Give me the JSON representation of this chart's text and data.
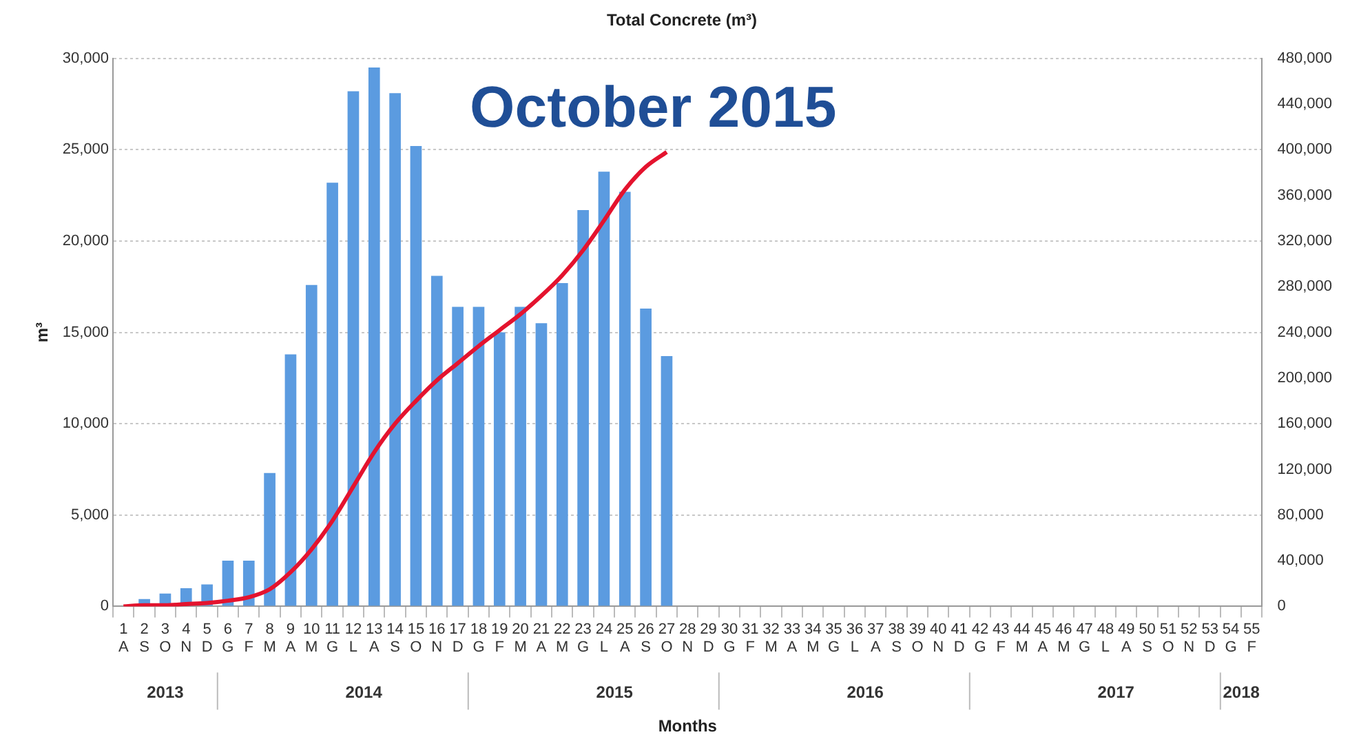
{
  "chart_data": {
    "type": "bar",
    "title": "Total Concrete (m³)",
    "xlabel": "Months",
    "ylabel": "m³",
    "categories": [
      "1\nA",
      "2\nS",
      "3\nO",
      "4\nN",
      "5\nD",
      "6\nG",
      "7\nF",
      "8\nM",
      "9\nA",
      "10\nM",
      "11\nG",
      "12\nL",
      "13\nA",
      "14\nS",
      "15\nO",
      "16\nN",
      "17\nD",
      "18\nG",
      "19\nF",
      "20\nM",
      "21\nA",
      "22\nM",
      "23\nG",
      "24\nL",
      "25\nA",
      "26\nS",
      "27\nO",
      "28\nN",
      "29\nD",
      "30\nG",
      "31\nF",
      "32\nM",
      "33\nA",
      "34\nM",
      "35\nG",
      "36\nL",
      "37\nA",
      "38\nS",
      "39\nO",
      "40\nN",
      "41\nD",
      "42\nG",
      "43\nF",
      "44\nM",
      "45\nA",
      "46\nM",
      "47\nG",
      "48\nL",
      "49\nA",
      "50\nS",
      "51\nO",
      "52\nN",
      "53\nD",
      "54\nG",
      "55\nF"
    ],
    "series": [
      {
        "color": "#5b9be0",
        "values": [
          null,
          400,
          700,
          1000,
          1200,
          2500,
          2500,
          7300,
          13800,
          17600,
          23200,
          28200,
          29500,
          28100,
          25200,
          18100,
          16400,
          16400,
          15000,
          16400,
          15500,
          17700,
          21700,
          23800,
          22700,
          16300,
          13700,
          null,
          null,
          null,
          null,
          null,
          null,
          null,
          null,
          null,
          null,
          null,
          null,
          null,
          null,
          null,
          null,
          null,
          null,
          null,
          null,
          null,
          null,
          null,
          null,
          null,
          null,
          null,
          null
        ]
      },
      {
        "type": "line",
        "axis": "y2",
        "color": "#e4132e",
        "values": [
          0,
          1000,
          1000,
          2000,
          3000,
          5000,
          8000,
          15000,
          30000,
          50000,
          75000,
          105000,
          135000,
          160000,
          180000,
          198000,
          213000,
          228000,
          242000,
          256000,
          272000,
          290000,
          312000,
          338000,
          365000,
          385000,
          398000,
          null,
          null,
          null,
          null,
          null,
          null,
          null,
          null,
          null,
          null,
          null,
          null,
          null,
          null,
          null,
          null,
          null,
          null,
          null,
          null,
          null,
          null,
          null,
          null,
          null,
          null,
          null,
          null
        ]
      }
    ],
    "ylim": [
      0,
      30000
    ],
    "yticks": [
      0,
      {
        "value": 5000,
        "label": "5,000"
      },
      {
        "value": 10000,
        "label": "10,000"
      },
      {
        "value": 15000,
        "label": "15,000"
      },
      {
        "value": 20000,
        "label": "20,000"
      },
      {
        "value": 25000,
        "label": "25,000"
      },
      {
        "value": 30000,
        "label": "30,000"
      }
    ],
    "y2lim": [
      0,
      480000
    ],
    "y2ticks": [
      0,
      {
        "value": 40000,
        "label": "40,000"
      },
      {
        "value": 80000,
        "label": "80,000"
      },
      {
        "value": 120000,
        "label": "120,000"
      },
      {
        "value": 160000,
        "label": "160,000"
      },
      {
        "value": 200000,
        "label": "200,000"
      },
      {
        "value": 240000,
        "label": "240,000"
      },
      {
        "value": 280000,
        "label": "280,000"
      },
      {
        "value": 320000,
        "label": "320,000"
      },
      {
        "value": 360000,
        "label": "360,000"
      },
      {
        "value": 400000,
        "label": "400,000"
      },
      {
        "value": 440000,
        "label": "440,000"
      },
      {
        "value": 480000,
        "label": "480,000"
      }
    ],
    "annotations": [
      "October 2015",
      "2013",
      "2014",
      "2015",
      "2016",
      "2017",
      "2018"
    ],
    "grid": "y",
    "legend": false,
    "marker": "none",
    "line_style": "solid"
  }
}
